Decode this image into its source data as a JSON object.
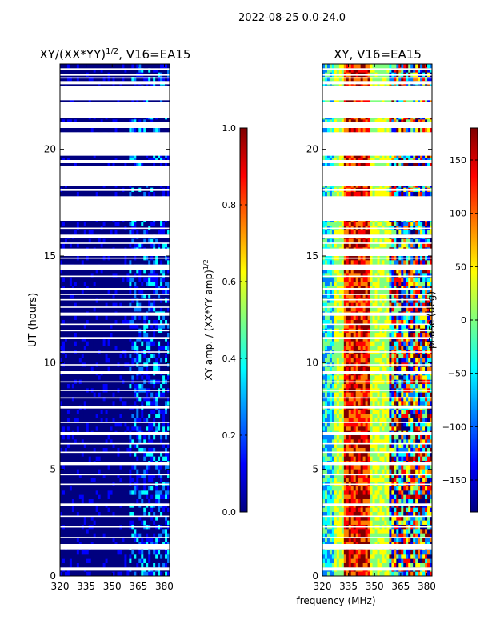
{
  "figure_title": "2022-08-25 0.0-24.0",
  "colors": {
    "jet": [
      "#00007f",
      "#0000ff",
      "#007fff",
      "#00ffff",
      "#7fff7f",
      "#ffff00",
      "#ff7f00",
      "#ff0000",
      "#7f0000"
    ],
    "background": "#ffffff",
    "axes": "#000000"
  },
  "chart_data": [
    {
      "type": "heatmap",
      "title": "XY/(XX*YY)^1/2, V16=EA15",
      "title_main": "XY/(XX*YY)",
      "title_sup": "1/2",
      "title_tail": ", V16=EA15",
      "ylabel": "UT (hours)",
      "xlim": [
        320,
        383
      ],
      "ylim": [
        0,
        24
      ],
      "xticks": [
        320,
        335,
        350,
        365,
        380
      ],
      "yticks": [
        0,
        5,
        10,
        15,
        20
      ],
      "colorbar": {
        "label": "XY amp. / (XX*YY amp)^1/2",
        "label_main": "XY amp. / (XX*YY amp)",
        "label_sup": "1/2",
        "range": [
          0.0,
          1.0
        ],
        "ticks": [
          0.0,
          0.2,
          0.4,
          0.6,
          0.8,
          1.0
        ],
        "tick_labels": [
          "0.0",
          "0.2",
          "0.4",
          "0.6",
          "0.8",
          "1.0"
        ]
      }
    },
    {
      "type": "heatmap",
      "title": "XY, V16=EA15",
      "xlim": [
        320,
        383
      ],
      "ylim": [
        0,
        24
      ],
      "xticks": [
        320,
        335,
        350,
        365,
        380
      ],
      "yticks": [
        0,
        5,
        10,
        15,
        20
      ],
      "colorbar": {
        "label": "phase (deg)",
        "range": [
          -180,
          180
        ],
        "ticks": [
          -150,
          -100,
          -50,
          0,
          50,
          100,
          150
        ],
        "tick_labels": [
          "−150",
          "−100",
          "−50",
          "0",
          "50",
          "100",
          "150"
        ]
      }
    }
  ],
  "shared_xlabel": "frequency (MHz)",
  "data_gaps_hours": [
    [
      0.25,
      0.4
    ],
    [
      1.25,
      1.5
    ],
    [
      3.3,
      3.4
    ],
    [
      5.2,
      5.35
    ],
    [
      6.6,
      6.75
    ],
    [
      7.85,
      7.95
    ],
    [
      9.45,
      9.6
    ],
    [
      11.1,
      11.2
    ],
    [
      12.2,
      12.35
    ],
    [
      13.4,
      13.5
    ],
    [
      14.35,
      14.6
    ],
    [
      15.0,
      15.35
    ],
    [
      15.85,
      16.0
    ],
    [
      16.65,
      17.8
    ],
    [
      18.05,
      18.15
    ],
    [
      18.3,
      19.2
    ],
    [
      19.35,
      19.5
    ],
    [
      19.7,
      20.8
    ],
    [
      21.0,
      21.3
    ],
    [
      21.45,
      22.2
    ],
    [
      22.3,
      22.95
    ],
    [
      23.05,
      23.2
    ],
    [
      23.45,
      23.55
    ],
    [
      23.7,
      23.8
    ]
  ],
  "thin_gaps_hours": [
    1.8,
    2.3,
    2.8,
    4.3,
    4.75,
    5.8,
    6.2,
    7.2,
    8.35,
    8.7,
    9.1,
    9.9,
    10.5,
    11.5,
    11.8,
    12.6,
    12.95,
    13.2,
    14.05,
    14.9,
    15.6,
    16.3,
    22.5,
    23.35
  ]
}
